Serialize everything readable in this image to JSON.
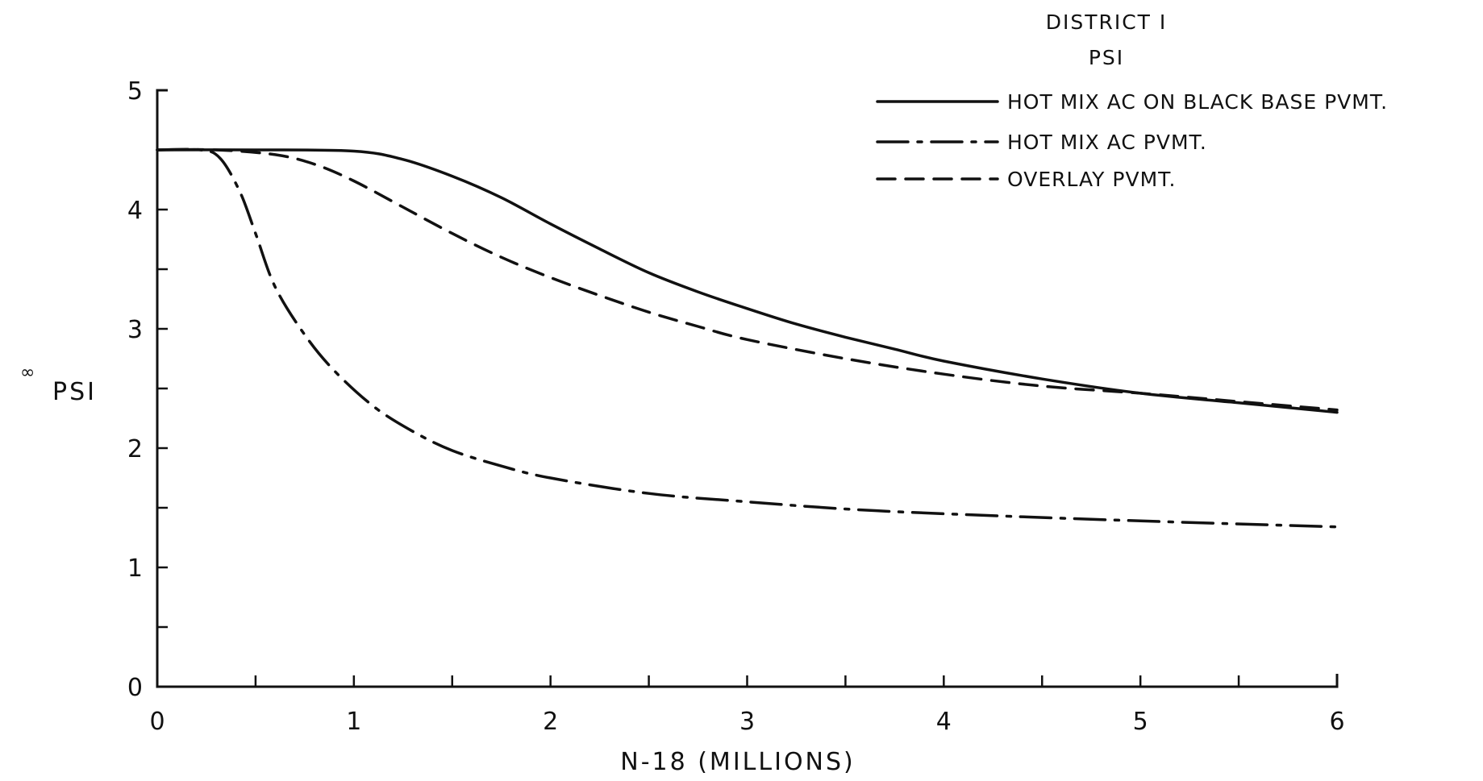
{
  "chart_data": {
    "type": "line",
    "title": "DISTRICT I",
    "subtitle": "PSI",
    "xlabel": "N-18 (MILLIONS)",
    "ylabel": "PSI",
    "ylabel_mark": "∞",
    "xlim": [
      0,
      6
    ],
    "ylim": [
      0,
      5
    ],
    "x_ticks": [
      0,
      0.5,
      1,
      1.5,
      2,
      2.5,
      3,
      3.5,
      4,
      4.5,
      5,
      5.5,
      6
    ],
    "x_tick_labels": [
      "0",
      "1",
      "2",
      "3",
      "4",
      "5",
      "6"
    ],
    "y_ticks": [
      0,
      0.5,
      1,
      1.5,
      2,
      2.5,
      3,
      3.5,
      4,
      4.5,
      5
    ],
    "y_tick_labels": [
      "0",
      "1",
      "2",
      "3",
      "4",
      "5"
    ],
    "grid": false,
    "legend_position": "top-right",
    "series": [
      {
        "name": "HOT MIX AC ON BLACK BASE PVMT.",
        "style": "solid",
        "points": [
          [
            0,
            4.5
          ],
          [
            0.5,
            4.5
          ],
          [
            1.0,
            4.49
          ],
          [
            1.25,
            4.42
          ],
          [
            1.5,
            4.28
          ],
          [
            1.75,
            4.1
          ],
          [
            2.0,
            3.88
          ],
          [
            2.25,
            3.67
          ],
          [
            2.5,
            3.47
          ],
          [
            2.75,
            3.31
          ],
          [
            3.0,
            3.17
          ],
          [
            3.25,
            3.04
          ],
          [
            3.5,
            2.93
          ],
          [
            3.75,
            2.83
          ],
          [
            4.0,
            2.73
          ],
          [
            4.5,
            2.58
          ],
          [
            5.0,
            2.46
          ],
          [
            5.5,
            2.38
          ],
          [
            6.0,
            2.3
          ]
        ]
      },
      {
        "name": "HOT MIX AC PVMT.",
        "style": "dash-dot",
        "points": [
          [
            0,
            4.5
          ],
          [
            0.22,
            4.5
          ],
          [
            0.32,
            4.43
          ],
          [
            0.42,
            4.15
          ],
          [
            0.5,
            3.8
          ],
          [
            0.6,
            3.35
          ],
          [
            0.75,
            2.95
          ],
          [
            0.9,
            2.65
          ],
          [
            1.1,
            2.35
          ],
          [
            1.3,
            2.14
          ],
          [
            1.5,
            1.98
          ],
          [
            1.75,
            1.85
          ],
          [
            2.0,
            1.75
          ],
          [
            2.5,
            1.62
          ],
          [
            3.0,
            1.55
          ],
          [
            3.5,
            1.49
          ],
          [
            4.0,
            1.45
          ],
          [
            5.0,
            1.39
          ],
          [
            6.0,
            1.34
          ]
        ]
      },
      {
        "name": "OVERLAY PVMT.",
        "style": "dashed",
        "points": [
          [
            0,
            4.5
          ],
          [
            0.3,
            4.5
          ],
          [
            0.6,
            4.46
          ],
          [
            0.8,
            4.38
          ],
          [
            1.0,
            4.24
          ],
          [
            1.25,
            4.02
          ],
          [
            1.5,
            3.8
          ],
          [
            1.75,
            3.6
          ],
          [
            2.0,
            3.43
          ],
          [
            2.25,
            3.28
          ],
          [
            2.5,
            3.14
          ],
          [
            2.75,
            3.02
          ],
          [
            3.0,
            2.91
          ],
          [
            3.5,
            2.75
          ],
          [
            4.0,
            2.62
          ],
          [
            4.5,
            2.52
          ],
          [
            5.0,
            2.46
          ],
          [
            5.5,
            2.39
          ],
          [
            6.0,
            2.32
          ]
        ]
      }
    ]
  }
}
